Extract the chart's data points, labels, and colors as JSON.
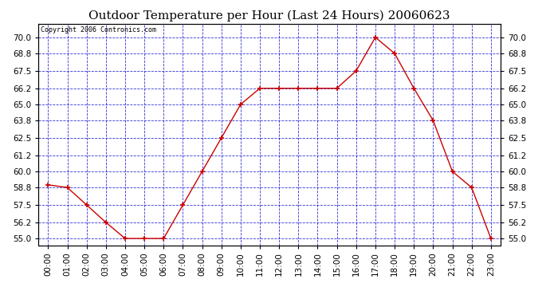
{
  "title": "Outdoor Temperature per Hour (Last 24 Hours) 20060623",
  "copyright": "Copyright 2006 Contronics.com",
  "hours": [
    "00:00",
    "01:00",
    "02:00",
    "03:00",
    "04:00",
    "05:00",
    "06:00",
    "07:00",
    "08:00",
    "09:00",
    "10:00",
    "11:00",
    "12:00",
    "13:00",
    "14:00",
    "15:00",
    "16:00",
    "17:00",
    "18:00",
    "19:00",
    "20:00",
    "21:00",
    "22:00",
    "23:00"
  ],
  "temperatures": [
    59.0,
    58.8,
    57.5,
    56.2,
    55.0,
    55.0,
    55.0,
    57.5,
    60.0,
    62.5,
    65.0,
    66.2,
    66.2,
    66.2,
    66.2,
    66.2,
    67.5,
    70.0,
    68.8,
    66.2,
    63.8,
    60.0,
    58.8,
    55.0
  ],
  "ylim": [
    54.5,
    71.0
  ],
  "yticks": [
    55.0,
    56.2,
    57.5,
    58.8,
    60.0,
    61.2,
    62.5,
    63.8,
    65.0,
    66.2,
    67.5,
    68.8,
    70.0
  ],
  "line_color": "#cc0000",
  "marker_color": "#cc0000",
  "bg_color": "#ffffff",
  "plot_bg_color": "#ffffff",
  "grid_color": "#0000cc",
  "title_fontsize": 11,
  "copyright_fontsize": 6,
  "tick_fontsize": 7.5
}
